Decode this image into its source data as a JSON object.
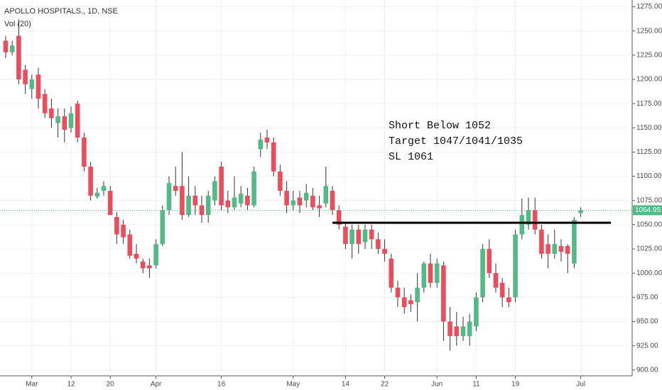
{
  "chart_data": {
    "type": "candlestick",
    "title": "APOLLO HOSPITALS., 1D, NSE",
    "subtitle": "Vol (20)",
    "categories": [
      null,
      null,
      null,
      null,
      "Mar",
      null,
      null,
      null,
      null,
      null,
      "12",
      null,
      null,
      null,
      null,
      null,
      "20",
      null,
      null,
      null,
      null,
      null,
      null,
      "Apr",
      null,
      null,
      null,
      null,
      null,
      null,
      null,
      null,
      null,
      "16",
      null,
      null,
      null,
      null,
      null,
      null,
      null,
      null,
      null,
      null,
      "May",
      null,
      null,
      null,
      null,
      null,
      null,
      null,
      "14",
      null,
      null,
      null,
      null,
      null,
      "22",
      null,
      null,
      null,
      null,
      null,
      null,
      null,
      "Jun",
      null,
      null,
      null,
      null,
      null,
      "11",
      null,
      null,
      null,
      null,
      null,
      "19",
      null,
      null,
      null,
      null,
      null,
      null,
      null,
      null,
      null,
      "Jul"
    ],
    "open": [
      1240,
      1228,
      1245,
      1210,
      1190,
      1205,
      1185,
      1170,
      1155,
      1162,
      1150,
      1175,
      1140,
      1110,
      1079,
      1085,
      1085,
      1058,
      1050,
      1040,
      1020,
      1012,
      1008,
      1008,
      1030,
      1065,
      1090,
      1090,
      1060,
      1080,
      1070,
      1060,
      1075,
      1110,
      1075,
      1068,
      1072,
      1080,
      1070,
      1128,
      1140,
      1135,
      1105,
      1085,
      1070,
      1078,
      1075,
      1080,
      1070,
      1072,
      1085,
      1065,
      1048,
      1030,
      1045,
      1032,
      1045,
      1035,
      1025,
      1015,
      985,
      975,
      972,
      970,
      985,
      1010,
      990,
      1008,
      950,
      945,
      935,
      935,
      945,
      975,
      1025,
      1000,
      990,
      975,
      975,
      1040,
      1050,
      1065,
      1045,
      1030,
      1020,
      1028,
      1028,
      1010,
      1062
    ],
    "high": [
      1245,
      1240,
      1262,
      1215,
      1205,
      1212,
      1190,
      1180,
      1170,
      1170,
      1172,
      1178,
      1145,
      1115,
      1088,
      1095,
      1090,
      1063,
      1055,
      1045,
      1030,
      1015,
      1015,
      1035,
      1070,
      1100,
      1110,
      1125,
      1100,
      1090,
      1080,
      1085,
      1100,
      1115,
      1085,
      1100,
      1090,
      1088,
      1110,
      1145,
      1148,
      1140,
      1112,
      1095,
      1085,
      1085,
      1092,
      1088,
      1080,
      1110,
      1090,
      1070,
      1052,
      1050,
      1050,
      1050,
      1050,
      1042,
      1035,
      1020,
      992,
      985,
      978,
      1000,
      1012,
      1020,
      1015,
      1012,
      965,
      960,
      955,
      958,
      980,
      1030,
      1035,
      1010,
      995,
      985,
      1045,
      1077,
      1078,
      1078,
      1050,
      1040,
      1045,
      1035,
      1030,
      1058,
      1068
    ],
    "low": [
      1222,
      1225,
      1195,
      1185,
      1180,
      1170,
      1160,
      1150,
      1140,
      1135,
      1145,
      1135,
      1105,
      1075,
      1077,
      1080,
      1060,
      1030,
      1030,
      1015,
      1010,
      1000,
      995,
      1005,
      1028,
      1060,
      1080,
      1055,
      1058,
      1060,
      1052,
      1052,
      1070,
      1065,
      1062,
      1065,
      1068,
      1065,
      1068,
      1120,
      1128,
      1100,
      1080,
      1062,
      1065,
      1062,
      1068,
      1065,
      1058,
      1068,
      1060,
      1045,
      1025,
      1015,
      1020,
      1025,
      1025,
      1020,
      1012,
      980,
      965,
      958,
      960,
      950,
      980,
      985,
      985,
      930,
      920,
      925,
      930,
      925,
      940,
      970,
      995,
      980,
      965,
      965,
      970,
      1035,
      1045,
      1040,
      1015,
      1005,
      1015,
      1012,
      1000,
      1005,
      1058
    ],
    "close": [
      1228,
      1235,
      1200,
      1195,
      1200,
      1180,
      1165,
      1160,
      1162,
      1148,
      1165,
      1140,
      1110,
      1080,
      1083,
      1090,
      1060,
      1040,
      1037,
      1018,
      1015,
      1005,
      1005,
      1030,
      1065,
      1093,
      1085,
      1060,
      1080,
      1070,
      1060,
      1080,
      1095,
      1070,
      1068,
      1078,
      1082,
      1070,
      1105,
      1138,
      1135,
      1105,
      1085,
      1070,
      1075,
      1070,
      1083,
      1068,
      1067,
      1090,
      1065,
      1050,
      1030,
      1045,
      1030,
      1045,
      1035,
      1025,
      1020,
      985,
      975,
      965,
      968,
      985,
      1010,
      990,
      1010,
      950,
      935,
      935,
      945,
      950,
      975,
      1025,
      1000,
      985,
      975,
      970,
      1040,
      1060,
      1065,
      1045,
      1020,
      1020,
      1030,
      1022,
      1020,
      1055,
      1064.95
    ],
    "up_color": "#53b987",
    "down_color": "#eb4d5c",
    "ylim": [
      894,
      1282
    ],
    "yticks": [
      {
        "value": 900,
        "label": "900.00"
      },
      {
        "value": 925,
        "label": "925.00"
      },
      {
        "value": 950,
        "label": "950.00"
      },
      {
        "value": 975,
        "label": "975.00"
      },
      {
        "value": 1000,
        "label": "1000.00"
      },
      {
        "value": 1025,
        "label": "1025.00"
      },
      {
        "value": 1050,
        "label": "1050.00"
      },
      {
        "value": 1075,
        "label": "1075.00"
      },
      {
        "value": 1100,
        "label": "1100.00"
      },
      {
        "value": 1125,
        "label": "1125.00"
      },
      {
        "value": 1150,
        "label": "1150.00"
      },
      {
        "value": 1175,
        "label": "1175.00"
      },
      {
        "value": 1200,
        "label": "1200.00"
      },
      {
        "value": 1225,
        "label": "1225.00"
      },
      {
        "value": 1250,
        "label": "1250.00"
      },
      {
        "value": 1275,
        "label": "1275.00"
      }
    ],
    "grid": true,
    "level": {
      "value": 1052,
      "color": "#000000"
    },
    "annotations": [
      "Short Below 1052",
      "Target 1047/1041/1035",
      "SL 1061"
    ]
  }
}
